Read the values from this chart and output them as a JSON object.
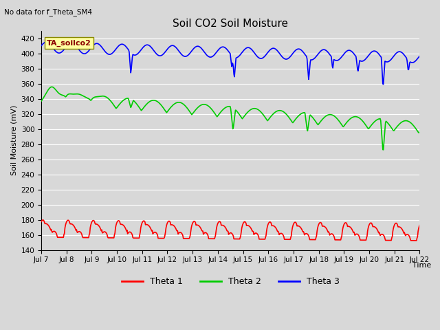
{
  "title": "Soil CO2 Soil Moisture",
  "subtitle": "No data for f_Theta_SM4",
  "xlabel": "Time",
  "ylabel": "Soil Moisture (mV)",
  "ylim": [
    140,
    430
  ],
  "yticks": [
    140,
    160,
    180,
    200,
    220,
    240,
    260,
    280,
    300,
    320,
    340,
    360,
    380,
    400,
    420
  ],
  "xtick_labels": [
    "Jul 7",
    "Jul 8",
    "Jul 9",
    "Jul 10",
    "Jul 11",
    "Jul 12",
    "Jul 13",
    "Jul 14",
    "Jul 15",
    "Jul 16",
    "Jul 17",
    "Jul 18",
    "Jul 19",
    "Jul 20",
    "Jul 21",
    "Jul 22"
  ],
  "bg_color": "#d8d8d8",
  "plot_bg_color": "#d8d8d8",
  "grid_color": "white",
  "annotation_text": "TA_soilco2",
  "annotation_bg": "#ffffa0",
  "annotation_border": "#888800",
  "legend_entries": [
    "Theta 1",
    "Theta 2",
    "Theta 3"
  ],
  "legend_colors": [
    "#ff0000",
    "#00cc00",
    "#0000ff"
  ],
  "theta1_color": "#ff0000",
  "theta2_color": "#00cc00",
  "theta3_color": "#0000ff",
  "line_width": 1.2
}
